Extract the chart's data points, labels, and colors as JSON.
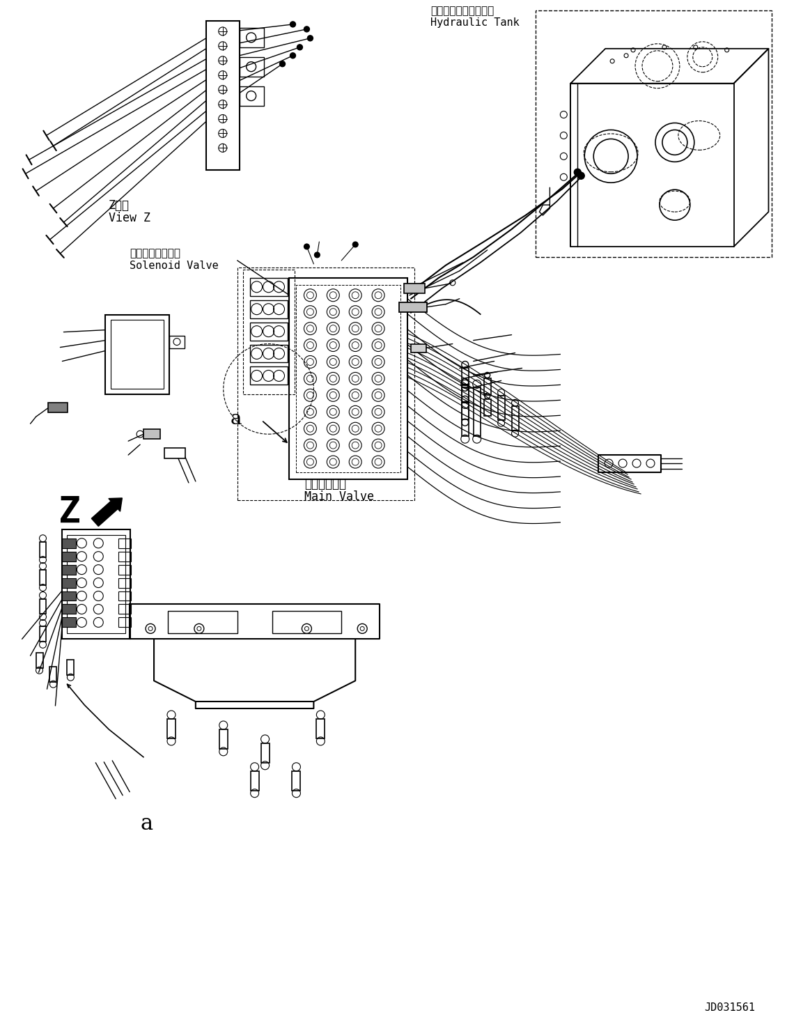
{
  "background_color": "#ffffff",
  "line_color": "#000000",
  "text_color": "#000000",
  "part_diagram_id": "JD031561",
  "labels": {
    "hydraulic_tank_jp": "ハイドロリックタンク",
    "hydraulic_tank_en": "Hydraulic Tank",
    "solenoid_valve_jp": "ソレノイドバルブ",
    "solenoid_valve_en": "Solenoid Valve",
    "main_valve_jp": "メインバルブ",
    "main_valve_en": "Main Valve",
    "view_z_jp": "Z　視",
    "view_z_en": "View Z",
    "label_a_bottom": "a",
    "label_a_mid": "a",
    "label_z": "Z"
  },
  "figsize": [
    11.63,
    14.57
  ],
  "dpi": 100
}
